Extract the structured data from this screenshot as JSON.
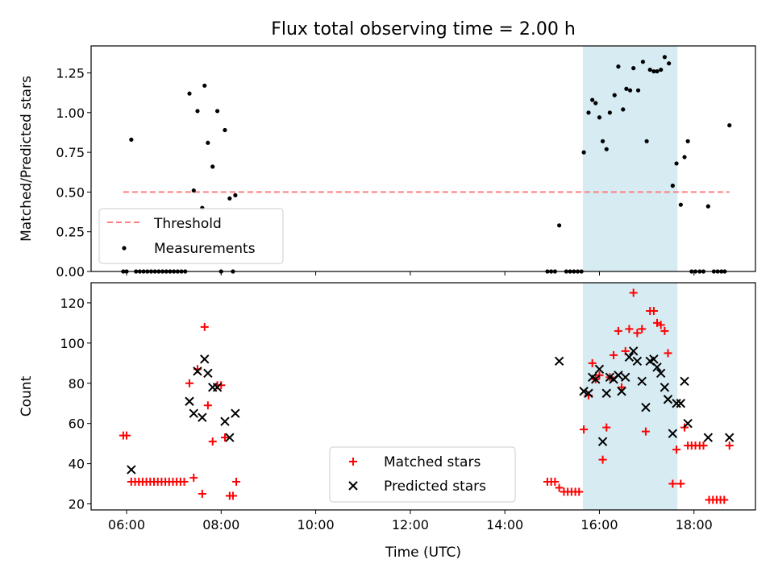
{
  "figure": {
    "title": "Flux total observing time = 2.00 h"
  },
  "colors": {
    "threshold": "#ff7f7f",
    "measurements": "#000000",
    "matched": "#ff0000",
    "predicted": "#000000",
    "highlight_band": "#add8e6"
  },
  "chart_data": [
    {
      "type": "scatter",
      "panel": "top",
      "xlabel": "",
      "ylabel": "Matched/Predicted stars",
      "x_unit": "hours UTC",
      "xlim": [
        5.25,
        19.3
      ],
      "ylim": [
        0,
        1.42
      ],
      "yticks": [
        0.0,
        0.25,
        0.5,
        0.75,
        1.0,
        1.25
      ],
      "ytick_labels": [
        "0.00",
        "0.25",
        "0.50",
        "0.75",
        "1.00",
        "1.25"
      ],
      "highlight_band": [
        15.65,
        17.65
      ],
      "legend_position": "lower-left",
      "series": [
        {
          "name": "Threshold",
          "kind": "dashed-line",
          "x": [
            5.93,
            18.75
          ],
          "y": [
            0.5,
            0.5
          ]
        },
        {
          "name": "Measurements",
          "kind": "dot",
          "points": [
            [
              5.93,
              0.0
            ],
            [
              6.0,
              0.0
            ],
            [
              6.1,
              0.83
            ],
            [
              6.2,
              0.0
            ],
            [
              6.28,
              0.0
            ],
            [
              6.36,
              0.0
            ],
            [
              6.44,
              0.0
            ],
            [
              6.52,
              0.0
            ],
            [
              6.6,
              0.0
            ],
            [
              6.68,
              0.0
            ],
            [
              6.76,
              0.0
            ],
            [
              6.84,
              0.0
            ],
            [
              6.92,
              0.0
            ],
            [
              7.0,
              0.0
            ],
            [
              7.08,
              0.0
            ],
            [
              7.16,
              0.0
            ],
            [
              7.24,
              0.0
            ],
            [
              7.33,
              1.12
            ],
            [
              7.42,
              0.51
            ],
            [
              7.5,
              1.01
            ],
            [
              7.6,
              0.4
            ],
            [
              7.65,
              1.17
            ],
            [
              7.72,
              0.81
            ],
            [
              7.82,
              0.66
            ],
            [
              7.92,
              1.01
            ],
            [
              8.0,
              0.0
            ],
            [
              8.08,
              0.89
            ],
            [
              8.18,
              0.46
            ],
            [
              8.25,
              0.0
            ],
            [
              8.3,
              0.48
            ],
            [
              14.9,
              0.0
            ],
            [
              14.98,
              0.0
            ],
            [
              15.06,
              0.0
            ],
            [
              15.15,
              0.29
            ],
            [
              15.3,
              0.0
            ],
            [
              15.38,
              0.0
            ],
            [
              15.46,
              0.0
            ],
            [
              15.54,
              0.0
            ],
            [
              15.62,
              0.0
            ],
            [
              15.67,
              0.75
            ],
            [
              15.77,
              1.0
            ],
            [
              15.85,
              1.08
            ],
            [
              15.92,
              1.06
            ],
            [
              16.0,
              0.97
            ],
            [
              16.07,
              0.82
            ],
            [
              16.15,
              0.77
            ],
            [
              16.22,
              1.0
            ],
            [
              16.32,
              1.11
            ],
            [
              16.4,
              1.29
            ],
            [
              16.5,
              1.02
            ],
            [
              16.57,
              1.15
            ],
            [
              16.65,
              1.14
            ],
            [
              16.72,
              1.28
            ],
            [
              16.82,
              1.14
            ],
            [
              16.92,
              1.32
            ],
            [
              17.0,
              0.82
            ],
            [
              17.07,
              1.27
            ],
            [
              17.15,
              1.26
            ],
            [
              17.22,
              1.26
            ],
            [
              17.3,
              1.27
            ],
            [
              17.38,
              1.35
            ],
            [
              17.47,
              1.31
            ],
            [
              17.55,
              0.54
            ],
            [
              17.63,
              0.68
            ],
            [
              17.72,
              0.42
            ],
            [
              17.8,
              0.72
            ],
            [
              17.87,
              0.82
            ],
            [
              17.95,
              0.0
            ],
            [
              18.03,
              0.0
            ],
            [
              18.12,
              0.0
            ],
            [
              18.2,
              0.0
            ],
            [
              18.3,
              0.41
            ],
            [
              18.42,
              0.0
            ],
            [
              18.5,
              0.0
            ],
            [
              18.58,
              0.0
            ],
            [
              18.65,
              0.0
            ],
            [
              18.75,
              0.92
            ]
          ]
        }
      ]
    },
    {
      "type": "scatter",
      "panel": "bottom",
      "xlabel": "Time (UTC)",
      "ylabel": "Count",
      "x_unit": "hours UTC",
      "xlim": [
        5.25,
        19.3
      ],
      "ylim": [
        17,
        130
      ],
      "xticks": [
        6,
        8,
        10,
        12,
        14,
        16,
        18
      ],
      "xtick_labels": [
        "06:00",
        "08:00",
        "10:00",
        "12:00",
        "14:00",
        "16:00",
        "18:00"
      ],
      "yticks": [
        20,
        40,
        60,
        80,
        100,
        120
      ],
      "ytick_labels": [
        "20",
        "40",
        "60",
        "80",
        "100",
        "120"
      ],
      "highlight_band": [
        15.65,
        17.65
      ],
      "legend_position": "lower-center",
      "series": [
        {
          "name": "Matched stars",
          "kind": "plus",
          "points": [
            [
              5.93,
              54
            ],
            [
              6.0,
              54
            ],
            [
              6.1,
              31
            ],
            [
              6.18,
              31
            ],
            [
              6.26,
              31
            ],
            [
              6.34,
              31
            ],
            [
              6.42,
              31
            ],
            [
              6.5,
              31
            ],
            [
              6.58,
              31
            ],
            [
              6.66,
              31
            ],
            [
              6.74,
              31
            ],
            [
              6.82,
              31
            ],
            [
              6.9,
              31
            ],
            [
              6.98,
              31
            ],
            [
              7.06,
              31
            ],
            [
              7.14,
              31
            ],
            [
              7.22,
              31
            ],
            [
              7.33,
              80
            ],
            [
              7.42,
              33
            ],
            [
              7.5,
              87
            ],
            [
              7.6,
              25
            ],
            [
              7.65,
              108
            ],
            [
              7.72,
              69
            ],
            [
              7.82,
              51
            ],
            [
              7.92,
              79
            ],
            [
              8.0,
              79
            ],
            [
              8.08,
              53
            ],
            [
              8.18,
              24
            ],
            [
              8.25,
              24
            ],
            [
              8.32,
              31
            ],
            [
              14.9,
              31
            ],
            [
              14.98,
              31
            ],
            [
              15.06,
              31
            ],
            [
              15.15,
              28
            ],
            [
              15.25,
              26
            ],
            [
              15.33,
              26
            ],
            [
              15.41,
              26
            ],
            [
              15.49,
              26
            ],
            [
              15.57,
              26
            ],
            [
              15.67,
              57
            ],
            [
              15.77,
              74
            ],
            [
              15.85,
              90
            ],
            [
              15.92,
              82
            ],
            [
              16.0,
              84
            ],
            [
              16.07,
              42
            ],
            [
              16.15,
              58
            ],
            [
              16.22,
              83
            ],
            [
              16.3,
              94
            ],
            [
              16.4,
              106
            ],
            [
              16.47,
              78
            ],
            [
              16.55,
              96
            ],
            [
              16.63,
              107
            ],
            [
              16.72,
              125
            ],
            [
              16.8,
              105
            ],
            [
              16.9,
              107
            ],
            [
              16.98,
              56
            ],
            [
              17.07,
              116
            ],
            [
              17.15,
              116
            ],
            [
              17.22,
              110
            ],
            [
              17.3,
              109
            ],
            [
              17.38,
              106
            ],
            [
              17.45,
              95
            ],
            [
              17.55,
              30
            ],
            [
              17.63,
              47
            ],
            [
              17.72,
              30
            ],
            [
              17.8,
              58
            ],
            [
              17.87,
              49
            ],
            [
              17.95,
              49
            ],
            [
              18.03,
              49
            ],
            [
              18.12,
              49
            ],
            [
              18.2,
              49
            ],
            [
              18.32,
              22
            ],
            [
              18.4,
              22
            ],
            [
              18.48,
              22
            ],
            [
              18.56,
              22
            ],
            [
              18.64,
              22
            ],
            [
              18.75,
              49
            ]
          ]
        },
        {
          "name": "Predicted stars",
          "kind": "cross",
          "points": [
            [
              6.1,
              37
            ],
            [
              7.33,
              71
            ],
            [
              7.42,
              65
            ],
            [
              7.5,
              86
            ],
            [
              7.6,
              63
            ],
            [
              7.65,
              92
            ],
            [
              7.72,
              85
            ],
            [
              7.82,
              78
            ],
            [
              7.92,
              78
            ],
            [
              8.08,
              61
            ],
            [
              8.18,
              53
            ],
            [
              8.3,
              65
            ],
            [
              15.15,
              91
            ],
            [
              15.67,
              76
            ],
            [
              15.77,
              75
            ],
            [
              15.85,
              83
            ],
            [
              15.92,
              82
            ],
            [
              16.0,
              87
            ],
            [
              16.07,
              51
            ],
            [
              16.15,
              75
            ],
            [
              16.22,
              83
            ],
            [
              16.3,
              82
            ],
            [
              16.4,
              84
            ],
            [
              16.47,
              76
            ],
            [
              16.55,
              83
            ],
            [
              16.63,
              93
            ],
            [
              16.72,
              96
            ],
            [
              16.8,
              91
            ],
            [
              16.9,
              81
            ],
            [
              16.98,
              68
            ],
            [
              17.07,
              91
            ],
            [
              17.15,
              92
            ],
            [
              17.22,
              88
            ],
            [
              17.3,
              85
            ],
            [
              17.38,
              78
            ],
            [
              17.45,
              72
            ],
            [
              17.55,
              55
            ],
            [
              17.63,
              70
            ],
            [
              17.72,
              70
            ],
            [
              17.8,
              81
            ],
            [
              17.87,
              60
            ],
            [
              18.3,
              53
            ],
            [
              18.75,
              53
            ]
          ]
        }
      ]
    }
  ]
}
